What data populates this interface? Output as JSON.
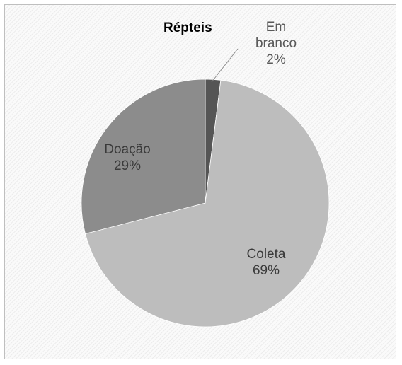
{
  "chart_data": {
    "type": "pie",
    "title": "Répteis",
    "slices": [
      {
        "name": "Em branco",
        "label_lines": [
          "Em",
          "branco"
        ],
        "value": 2,
        "value_label": "2%",
        "color": "#555555",
        "label_color": "#595959"
      },
      {
        "name": "Coleta",
        "label_lines": [
          "Coleta"
        ],
        "value": 69,
        "value_label": "69%",
        "color": "#bdbdbd",
        "label_color": "#3a3a3a"
      },
      {
        "name": "Doação",
        "label_lines": [
          "Doação"
        ],
        "value": 29,
        "value_label": "29%",
        "color": "#8c8c8c",
        "label_color": "#3a3a3a"
      }
    ]
  }
}
